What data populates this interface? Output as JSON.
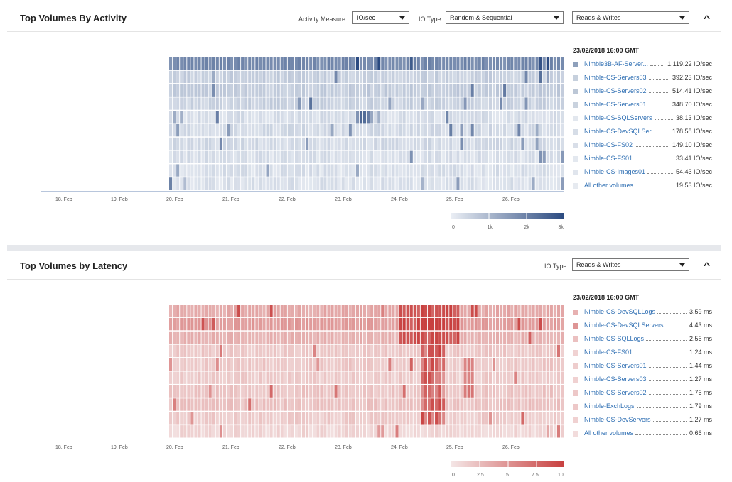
{
  "activity": {
    "title": "Top Volumes By Activity",
    "measure_label": "Activity Measure",
    "measure_value": "IO/sec",
    "io_type_label": "IO Type",
    "io_type_value": "Random & Sequential",
    "rw_value": "Reads & Writes",
    "timestamp": "23/02/2018 16:00 GMT",
    "x_ticks": [
      "18. Feb",
      "19. Feb",
      "20. Feb",
      "21. Feb",
      "22. Feb",
      "23. Feb",
      "24. Feb",
      "25. Feb",
      "26. Feb"
    ],
    "scale_ticks": [
      "0",
      "1k",
      "2k",
      "3k"
    ],
    "colors": {
      "low": "#eaeef4",
      "high": "#2b4a80"
    },
    "legend": [
      {
        "name": "Nimble3B-AF-Server...",
        "value": "1,119.22 IO/sec",
        "color": "#8ea0bb"
      },
      {
        "name": "Nimble-CS-Servers03",
        "value": "392.23 IO/sec",
        "color": "#c6d0dd"
      },
      {
        "name": "Nimble-CS-Servers02",
        "value": "514.41 IO/sec",
        "color": "#bcc7d6"
      },
      {
        "name": "Nimble-CS-Servers01",
        "value": "348.70 IO/sec",
        "color": "#c9d2de"
      },
      {
        "name": "Nimble-CS-SQLServers",
        "value": "38.13 IO/sec",
        "color": "#e2e7ee"
      },
      {
        "name": "Nimble-CS-DevSQLSer...",
        "value": "178.58 IO/sec",
        "color": "#d6dde7"
      },
      {
        "name": "Nimble-CS-FS02",
        "value": "149.10 IO/sec",
        "color": "#d8dee8"
      },
      {
        "name": "Nimble-CS-FS01",
        "value": "33.41 IO/sec",
        "color": "#e3e8ef"
      },
      {
        "name": "Nimble-CS-Images01",
        "value": "54.43 IO/sec",
        "color": "#e0e5ed"
      },
      {
        "name": "All other volumes",
        "value": "19.53 IO/sec",
        "color": "#e6eaf0"
      }
    ]
  },
  "latency": {
    "title": "Top Volumes by Latency",
    "io_type_label": "IO Type",
    "rw_value": "Reads & Writes",
    "timestamp": "23/02/2018 16:00 GMT",
    "x_ticks": [
      "18. Feb",
      "19. Feb",
      "20. Feb",
      "21. Feb",
      "22. Feb",
      "23. Feb",
      "24. Feb",
      "25. Feb",
      "26. Feb"
    ],
    "scale_ticks": [
      "0",
      "2.5",
      "5",
      "7.5",
      "10"
    ],
    "colors": {
      "low": "#f4e6e6",
      "high": "#c8403f"
    },
    "legend": [
      {
        "name": "Nimble-CS-DevSQLLogs",
        "value": "3.59 ms",
        "color": "#e7b1b1"
      },
      {
        "name": "Nimble-CS-DevSQLServers",
        "value": "4.43 ms",
        "color": "#de9595"
      },
      {
        "name": "Nimble-CS-SQLLogs",
        "value": "2.56 ms",
        "color": "#ebc0c0"
      },
      {
        "name": "Nimble-CS-FS01",
        "value": "1.24 ms",
        "color": "#f0d2d2"
      },
      {
        "name": "Nimble-CS-Servers01",
        "value": "1.44 ms",
        "color": "#eecdcd"
      },
      {
        "name": "Nimble-CS-Servers03",
        "value": "1.27 ms",
        "color": "#f0d1d1"
      },
      {
        "name": "Nimble-CS-Servers02",
        "value": "1.76 ms",
        "color": "#edc8c8"
      },
      {
        "name": "Nimble-ExchLogs",
        "value": "1.79 ms",
        "color": "#edc8c8"
      },
      {
        "name": "Nimble-CS-DevServers",
        "value": "1.27 ms",
        "color": "#f0d1d1"
      },
      {
        "name": "All other volumes",
        "value": "0.66 ms",
        "color": "#f2dcdc"
      }
    ]
  }
}
